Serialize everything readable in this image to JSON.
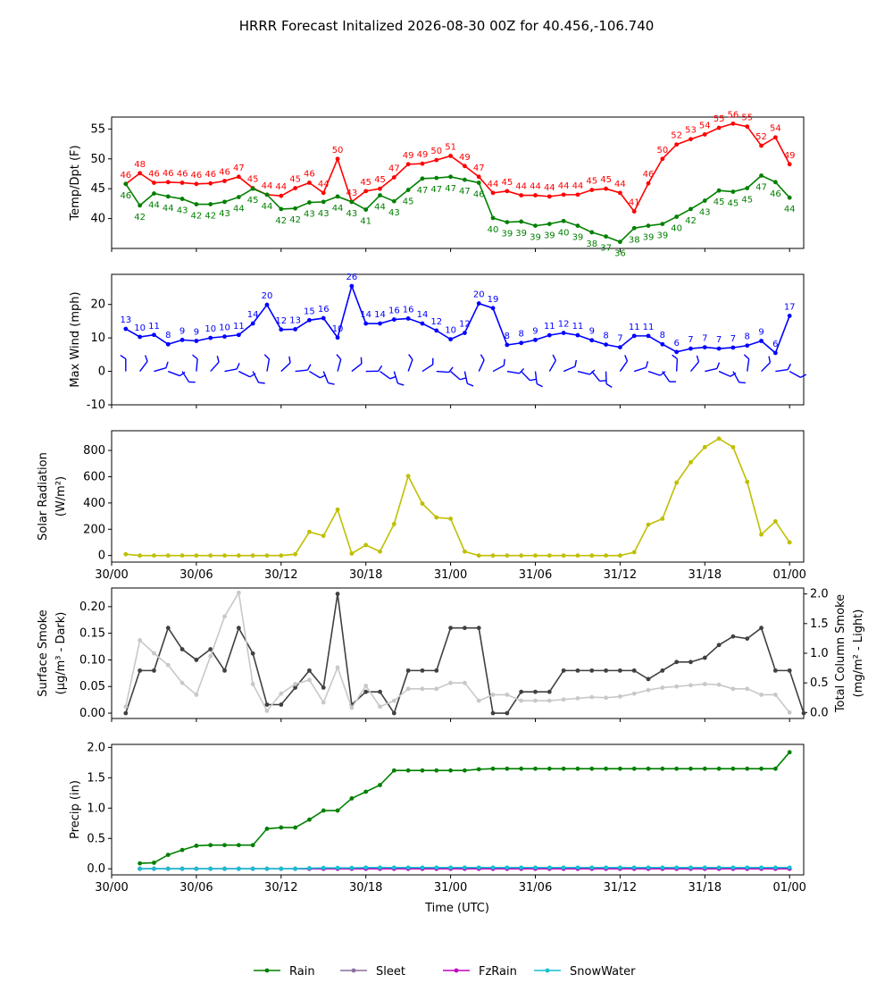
{
  "title": "HRRR Forecast Initalized 2026-08-30 00Z for 40.456,-106.740",
  "time_ticks": [
    "30/00",
    "30/06",
    "30/12",
    "30/18",
    "31/00",
    "31/06",
    "31/12",
    "31/18",
    "01/00"
  ],
  "xlabel": "Time (UTC)",
  "colors": {
    "temp": "#ff0000",
    "dewpoint": "#008000",
    "wind": "#0000ff",
    "solar": "#bfbf00",
    "smoke_dark": "#404040",
    "smoke_light": "#c8c8c8",
    "rain": "#008000",
    "sleet": "#8c6fa0",
    "fzrain": "#c000c0",
    "snow": "#17becf"
  },
  "legend": [
    "Rain",
    "Sleet",
    "FzRain",
    "SnowWater"
  ],
  "chart_data": [
    {
      "type": "line",
      "ylabel": "Temp/Dpt (F)",
      "ylim": [
        35,
        57
      ],
      "yticks": [
        40,
        45,
        50,
        55
      ],
      "x": [
        1,
        2,
        3,
        4,
        5,
        6,
        7,
        8,
        9,
        10,
        11,
        12,
        13,
        14,
        15,
        16,
        17,
        18,
        19,
        20,
        21,
        22,
        23,
        24,
        25,
        26,
        27,
        28,
        29,
        30,
        31,
        32,
        33,
        34,
        35,
        36,
        37,
        38,
        39,
        40,
        41,
        42,
        43,
        44,
        45,
        46,
        47,
        48
      ],
      "series": [
        {
          "key": "temp",
          "values": [
            46,
            48,
            46,
            46,
            46,
            46,
            46,
            46,
            47,
            45,
            44,
            44,
            45,
            46,
            44,
            50,
            43,
            45,
            45,
            47,
            49,
            49,
            50,
            51,
            49,
            47,
            44,
            45,
            44,
            44,
            44,
            44,
            44,
            45,
            45,
            44,
            41,
            46,
            50,
            52,
            53,
            54,
            55,
            56,
            55,
            52,
            54,
            49
          ],
          "exact": [
            45.8,
            47.6,
            46.0,
            46.1,
            46.0,
            45.8,
            45.9,
            46.3,
            47.0,
            45.1,
            44.0,
            43.8,
            45.1,
            46.0,
            44.3,
            50.0,
            42.8,
            44.6,
            45.0,
            46.9,
            49.1,
            49.2,
            49.8,
            50.5,
            48.8,
            47.0,
            44.3,
            44.6,
            43.9,
            43.9,
            43.7,
            44.0,
            44.0,
            44.8,
            45.0,
            44.3,
            41.2,
            45.9,
            50.0,
            52.4,
            53.3,
            54.1,
            55.2,
            55.9,
            55.4,
            52.2,
            53.6,
            49.1
          ]
        },
        {
          "key": "dewpoint",
          "values": [
            46,
            42,
            44,
            44,
            43,
            42,
            42,
            43,
            44,
            45,
            44,
            42,
            42,
            43,
            43,
            44,
            43,
            41,
            44,
            43,
            45,
            47,
            47,
            47,
            47,
            46,
            40,
            39,
            39,
            39,
            39,
            40,
            39,
            38,
            37,
            36,
            38,
            39,
            39,
            40,
            42,
            43,
            45,
            45,
            45,
            47,
            46,
            44
          ],
          "exact": [
            45.8,
            42.2,
            44.2,
            43.7,
            43.3,
            42.4,
            42.4,
            42.8,
            43.6,
            45.0,
            44.0,
            41.6,
            41.7,
            42.7,
            42.8,
            43.7,
            42.8,
            41.5,
            43.9,
            42.9,
            44.8,
            46.7,
            46.8,
            47.0,
            46.5,
            46.0,
            40.1,
            39.4,
            39.5,
            38.8,
            39.1,
            39.6,
            38.8,
            37.7,
            37.0,
            36.1,
            38.4,
            38.8,
            39.1,
            40.3,
            41.6,
            43.0,
            44.7,
            44.5,
            45.1,
            47.2,
            46.1,
            43.5
          ]
        }
      ]
    },
    {
      "type": "line",
      "ylabel": "Max Wind (mph)",
      "ylim": [
        -10,
        29
      ],
      "yticks": [
        -10,
        0,
        10,
        20
      ],
      "x": [
        1,
        2,
        3,
        4,
        5,
        6,
        7,
        8,
        9,
        10,
        11,
        12,
        13,
        14,
        15,
        16,
        17,
        18,
        19,
        20,
        21,
        22,
        23,
        24,
        25,
        26,
        27,
        28,
        29,
        30,
        31,
        32,
        33,
        34,
        35,
        36,
        37,
        38,
        39,
        40,
        41,
        42,
        43,
        44,
        45,
        46,
        47,
        48
      ],
      "series": [
        {
          "key": "wind",
          "values": [
            13,
            10,
            11,
            8,
            9,
            9,
            10,
            10,
            11,
            14,
            20,
            12,
            13,
            15,
            16,
            10,
            26,
            14,
            14,
            16,
            16,
            14,
            12,
            10,
            12,
            20,
            19,
            8,
            8,
            9,
            11,
            12,
            11,
            9,
            8,
            7,
            11,
            11,
            8,
            6,
            7,
            7,
            7,
            7,
            8,
            9,
            6,
            17
          ],
          "exact": [
            12.7,
            10.3,
            10.9,
            8.1,
            9.4,
            9.1,
            10.0,
            10.4,
            10.9,
            14.3,
            19.9,
            12.5,
            12.6,
            15.3,
            15.9,
            10.1,
            25.5,
            14.3,
            14.3,
            15.5,
            15.8,
            14.3,
            12.2,
            9.6,
            11.5,
            20.3,
            18.9,
            7.9,
            8.5,
            9.4,
            10.8,
            11.5,
            10.8,
            9.3,
            8.0,
            7.2,
            10.6,
            10.6,
            8.1,
            5.8,
            6.8,
            7.2,
            6.8,
            7.1,
            7.7,
            9.1,
            5.5,
            16.6
          ]
        }
      ],
      "barbs_at": 0
    },
    {
      "type": "line",
      "ylabel": "Solar Radiation (W/m²)",
      "ylim": [
        -50,
        950
      ],
      "yticks": [
        0,
        200,
        400,
        600,
        800
      ],
      "x": [
        1,
        2,
        3,
        4,
        5,
        6,
        7,
        8,
        9,
        10,
        11,
        12,
        13,
        14,
        15,
        16,
        17,
        18,
        19,
        20,
        21,
        22,
        23,
        24,
        25,
        26,
        27,
        28,
        29,
        30,
        31,
        32,
        33,
        34,
        35,
        36,
        37,
        38,
        39,
        40,
        41,
        42,
        43,
        44,
        45,
        46,
        47,
        48
      ],
      "series": [
        {
          "key": "solar",
          "values": [
            10,
            0,
            0,
            0,
            0,
            0,
            0,
            0,
            0,
            0,
            0,
            0,
            10,
            180,
            150,
            350,
            15,
            80,
            30,
            240,
            605,
            395,
            290,
            280,
            30,
            0,
            0,
            0,
            0,
            0,
            0,
            0,
            0,
            0,
            0,
            0,
            25,
            235,
            280,
            555,
            710,
            825,
            890,
            825,
            560,
            160,
            260,
            100
          ]
        }
      ]
    },
    {
      "type": "line",
      "ylabel": "Surface Smoke (μg/m³ - Dark)",
      "ylabel2": "Total Column Smoke (mg/m² - Light)",
      "ylim": [
        -0.01,
        0.235
      ],
      "yticks": [
        0.0,
        0.05,
        0.1,
        0.15,
        0.2
      ],
      "y2lim": [
        -0.1,
        2.1
      ],
      "y2ticks": [
        0.0,
        0.5,
        1.0,
        1.5,
        2.0
      ],
      "x": [
        1,
        2,
        3,
        4,
        5,
        6,
        7,
        8,
        9,
        10,
        11,
        12,
        13,
        14,
        15,
        16,
        17,
        18,
        19,
        20,
        21,
        22,
        23,
        24,
        25,
        26,
        27,
        28,
        29,
        30,
        31,
        32,
        33,
        34,
        35,
        36,
        37,
        38,
        39,
        40,
        41,
        42,
        43,
        44,
        45,
        46,
        47,
        48
      ],
      "series": [
        {
          "key": "smoke_dark",
          "values": [
            0.0,
            0.08,
            0.08,
            0.16,
            0.12,
            0.1,
            0.12,
            0.08,
            0.16,
            0.112,
            0.016,
            0.016,
            0.048,
            0.08,
            0.048,
            0.224,
            0.016,
            0.04,
            0.04,
            0.0,
            0.08,
            0.08,
            0.08,
            0.16,
            0.16,
            0.16,
            0.0,
            0.0,
            0.04,
            0.04,
            0.04,
            0.08,
            0.08,
            0.08,
            0.08,
            0.08,
            0.08,
            0.064,
            0.08,
            0.096,
            0.096,
            0.104,
            0.128,
            0.144,
            0.14,
            0.16,
            0.08,
            0.08,
            0.0
          ],
          "x": [
            1,
            2,
            3,
            4,
            5,
            6,
            7,
            8,
            9,
            10,
            11,
            12,
            13,
            14,
            15,
            16,
            17,
            18,
            19,
            20,
            21,
            22,
            23,
            24,
            25,
            26,
            27,
            28,
            29,
            30,
            31,
            32,
            33,
            34,
            35,
            36,
            37,
            38,
            39,
            40,
            41,
            42,
            43,
            44,
            45,
            46,
            47,
            48,
            49
          ]
        },
        {
          "key": "smoke_light",
          "values": [
            0.1,
            1.22,
            1.0,
            0.8,
            0.5,
            0.3,
            0.95,
            1.62,
            2.02,
            0.48,
            0.03,
            0.32,
            0.48,
            0.55,
            0.17,
            0.76,
            0.08,
            0.45,
            0.1,
            0.2,
            0.4,
            0.4,
            0.4,
            0.5,
            0.5,
            0.2,
            0.3,
            0.3,
            0.2,
            0.2,
            0.2,
            0.22,
            0.24,
            0.26,
            0.25,
            0.27,
            0.32,
            0.38,
            0.42,
            0.44,
            0.46,
            0.48,
            0.47,
            0.4,
            0.4,
            0.3,
            0.3,
            0.0
          ]
        }
      ]
    },
    {
      "type": "line",
      "ylabel": "Precip (in)",
      "ylim": [
        -0.1,
        2.05
      ],
      "yticks": [
        0.0,
        0.5,
        1.0,
        1.5,
        2.0
      ],
      "x": [
        2,
        3,
        4,
        5,
        6,
        7,
        8,
        9,
        10,
        11,
        12,
        13,
        14,
        15,
        16,
        17,
        18,
        19,
        20,
        21,
        22,
        23,
        24,
        25,
        26,
        27,
        28,
        29,
        30,
        31,
        32,
        33,
        34,
        35,
        36,
        37,
        38,
        39,
        40,
        41,
        42,
        43,
        44,
        45,
        46,
        47,
        48
      ],
      "series": [
        {
          "key": "rain",
          "values": [
            0.09,
            0.1,
            0.23,
            0.31,
            0.38,
            0.39,
            0.39,
            0.39,
            0.39,
            0.66,
            0.68,
            0.68,
            0.81,
            0.96,
            0.96,
            1.16,
            1.27,
            1.38,
            1.62,
            1.62,
            1.62,
            1.62,
            1.62,
            1.62,
            1.64,
            1.65,
            1.65,
            1.65,
            1.65,
            1.65,
            1.65,
            1.65,
            1.65,
            1.65,
            1.65,
            1.65,
            1.65,
            1.65,
            1.65,
            1.65,
            1.65,
            1.65,
            1.65,
            1.65,
            1.65,
            1.65,
            1.92
          ]
        },
        {
          "key": "sleet",
          "values": [
            0,
            0,
            0,
            0,
            0,
            0,
            0,
            0,
            0,
            0,
            0,
            0,
            0,
            0,
            0,
            0,
            0,
            0,
            0,
            0,
            0,
            0,
            0,
            0,
            0,
            0,
            0,
            0,
            0,
            0,
            0,
            0,
            0,
            0,
            0,
            0,
            0,
            0,
            0,
            0,
            0,
            0,
            0,
            0,
            0,
            0,
            0
          ]
        },
        {
          "key": "fzrain",
          "values": [
            0,
            0,
            0,
            0,
            0,
            0,
            0,
            0,
            0,
            0,
            0,
            0,
            0,
            0,
            0,
            0,
            0,
            0,
            0,
            0,
            0,
            0,
            0,
            0,
            0,
            0,
            0,
            0,
            0,
            0,
            0,
            0,
            0,
            0,
            0,
            0,
            0,
            0,
            0,
            0,
            0,
            0,
            0,
            0,
            0,
            0,
            0
          ]
        },
        {
          "key": "snow",
          "values": [
            0,
            0,
            0,
            0,
            0,
            0,
            0,
            0,
            0,
            0,
            0,
            0,
            0.01,
            0.015,
            0.015,
            0.015,
            0.02,
            0.02,
            0.02,
            0.02,
            0.02,
            0.02,
            0.02,
            0.02,
            0.02,
            0.02,
            0.02,
            0.02,
            0.02,
            0.02,
            0.02,
            0.02,
            0.02,
            0.02,
            0.02,
            0.02,
            0.02,
            0.02,
            0.02,
            0.02,
            0.02,
            0.02,
            0.02,
            0.02,
            0.02,
            0.02,
            0.02
          ]
        }
      ]
    }
  ]
}
